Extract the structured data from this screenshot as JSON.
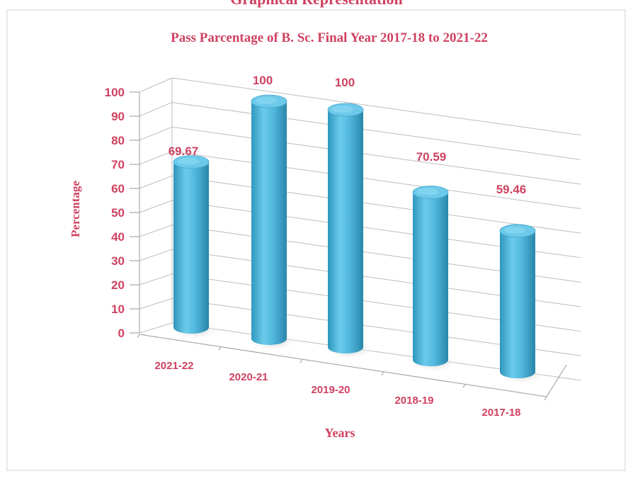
{
  "heading": "Graphical Representation",
  "chart_data": {
    "type": "bar",
    "title": "Pass Parcentage of B. Sc. Final Year 2017-18 to 2021-22",
    "xlabel": "Years",
    "ylabel": "Percentage",
    "categories": [
      "2021-22",
      "2020-21",
      "2019-20",
      "2018-19",
      "2017-18"
    ],
    "values": [
      69.67,
      100,
      100,
      70.59,
      59.46
    ],
    "data_labels": [
      "69.67",
      "100",
      "100",
      "70.59",
      "59.46"
    ],
    "ylim": [
      0,
      100
    ],
    "yticks": [
      "0",
      "10",
      "20",
      "30",
      "40",
      "50",
      "60",
      "70",
      "80",
      "90",
      "100"
    ],
    "grid": true,
    "style": "3d-cylinder",
    "colors": {
      "bar": "#4fb8dc",
      "text": "#cf4160"
    }
  }
}
